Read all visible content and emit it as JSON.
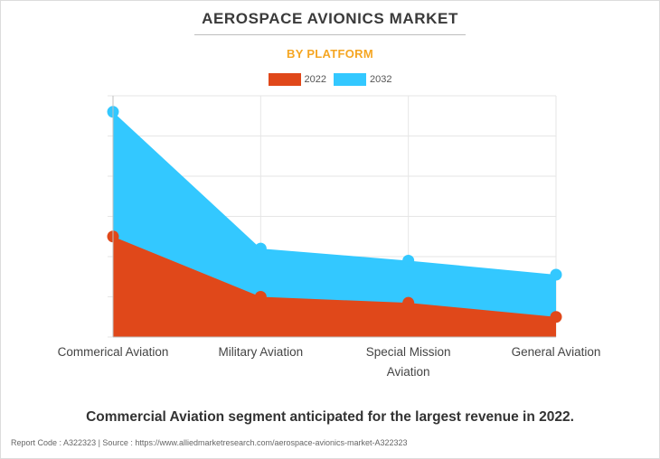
{
  "title": "AEROSPACE AVIONICS MARKET",
  "subtitle": "BY PLATFORM",
  "legend": [
    {
      "label": "2022",
      "color": "#e0481a"
    },
    {
      "label": "2032",
      "color": "#33c8ff"
    }
  ],
  "chart_data": {
    "type": "area",
    "categories": [
      "Commerical Aviation",
      "Military Aviation",
      "Special Mission Aviation",
      "General Aviation"
    ],
    "series": [
      {
        "name": "2032",
        "color": "#33c8ff",
        "values": [
          5.6,
          2.2,
          1.9,
          1.55
        ]
      },
      {
        "name": "2022",
        "color": "#e0481a",
        "values": [
          2.5,
          1.0,
          0.85,
          0.5
        ]
      }
    ],
    "ylim": [
      0,
      6
    ],
    "grid": true,
    "legend_position": "top-center"
  },
  "axis_labels": {
    "cat0": "Commerical Aviation",
    "cat1": "Military Aviation",
    "cat2_line1": "Special Mission",
    "cat2_line2": "Aviation",
    "cat3": "General Aviation"
  },
  "caption": "Commercial Aviation segment anticipated for the largest revenue in 2022.",
  "footer": "Report Code : A322323  |  Source : https://www.alliedmarketresearch.com/aerospace-avionics-market-A322323"
}
